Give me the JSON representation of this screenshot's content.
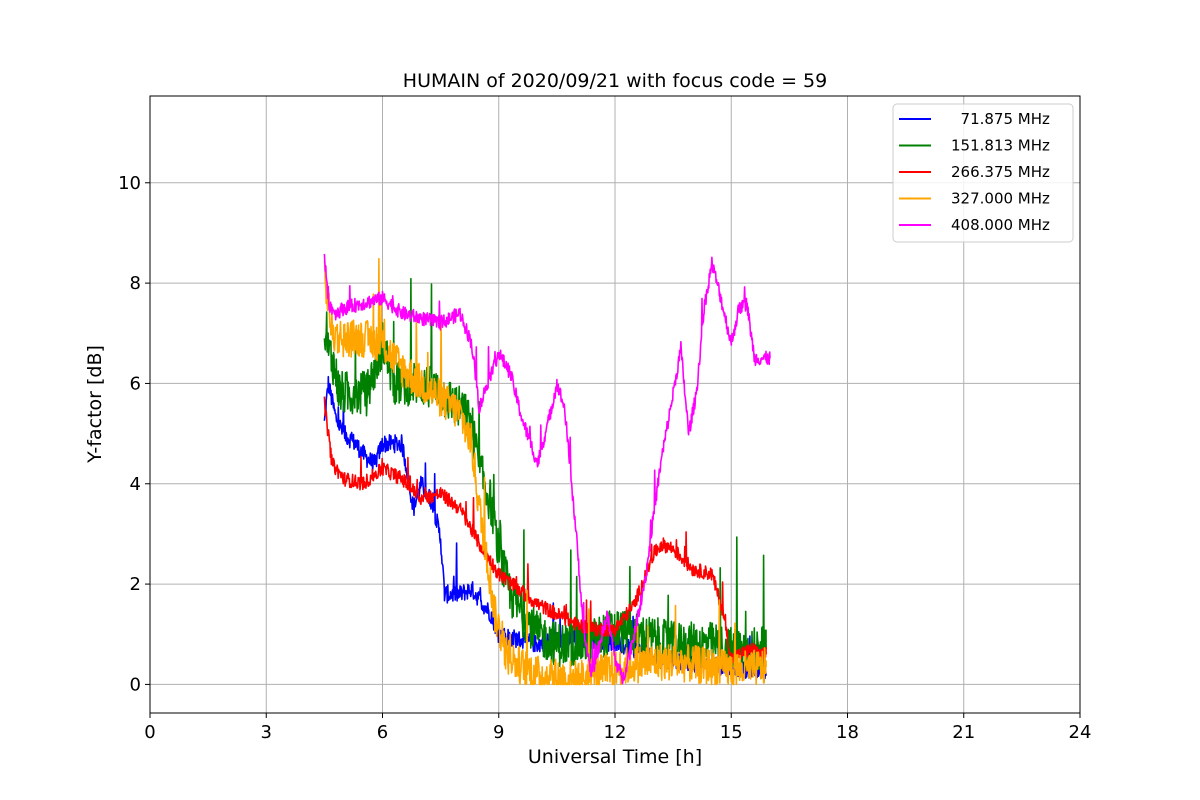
{
  "chart_data": {
    "type": "line",
    "title": "HUMAIN of 2020/09/21 with focus code = 59",
    "xlabel": "Universal Time [h]",
    "ylabel": "Y-factor [dB]",
    "xlim": [
      0,
      24
    ],
    "ylim": [
      -0.57,
      11.73
    ],
    "xticks": [
      0,
      3,
      6,
      9,
      12,
      15,
      18,
      21,
      24
    ],
    "yticks": [
      0,
      2,
      4,
      6,
      8,
      10
    ],
    "grid": true,
    "legend_position": "top-right",
    "series": [
      {
        "name": "  71.875 MHz",
        "color": "#0000ff",
        "noise": 0.18,
        "points": [
          [
            4.5,
            5.2
          ],
          [
            4.6,
            6.0
          ],
          [
            4.8,
            5.3
          ],
          [
            5.0,
            5.0
          ],
          [
            5.3,
            4.8
          ],
          [
            5.6,
            4.5
          ],
          [
            5.8,
            4.4
          ],
          [
            6.0,
            4.8
          ],
          [
            6.3,
            4.8
          ],
          [
            6.5,
            4.8
          ],
          [
            6.6,
            4.4
          ],
          [
            6.8,
            3.5
          ],
          [
            7.0,
            4.0
          ],
          [
            7.3,
            3.6
          ],
          [
            7.5,
            2.9
          ],
          [
            7.6,
            1.8
          ],
          [
            8.0,
            1.8
          ],
          [
            8.3,
            1.9
          ],
          [
            8.5,
            1.7
          ],
          [
            8.8,
            1.4
          ],
          [
            9.0,
            1.0
          ],
          [
            9.5,
            0.9
          ],
          [
            10.0,
            0.8
          ],
          [
            10.5,
            0.9
          ],
          [
            11.0,
            0.9
          ],
          [
            11.5,
            0.9
          ],
          [
            12.0,
            0.8
          ],
          [
            12.5,
            0.7
          ],
          [
            13.0,
            0.5
          ],
          [
            13.5,
            0.5
          ],
          [
            14.0,
            0.4
          ],
          [
            14.5,
            0.4
          ],
          [
            15.0,
            0.3
          ],
          [
            15.5,
            0.3
          ],
          [
            15.9,
            0.2
          ]
        ]
      },
      {
        "name": "151.813 MHz",
        "color": "#008000",
        "noise": 0.45,
        "points": [
          [
            4.5,
            6.8
          ],
          [
            4.7,
            6.5
          ],
          [
            4.9,
            5.8
          ],
          [
            5.3,
            5.8
          ],
          [
            5.6,
            5.8
          ],
          [
            5.8,
            6.3
          ],
          [
            6.0,
            6.8
          ],
          [
            6.3,
            6.0
          ],
          [
            6.6,
            6.0
          ],
          [
            7.0,
            6.0
          ],
          [
            7.5,
            5.8
          ],
          [
            8.0,
            5.5
          ],
          [
            8.3,
            5.2
          ],
          [
            8.5,
            4.3
          ],
          [
            8.8,
            3.6
          ],
          [
            9.0,
            2.6
          ],
          [
            9.3,
            1.8
          ],
          [
            9.6,
            1.4
          ],
          [
            10.0,
            1.0
          ],
          [
            10.5,
            0.8
          ],
          [
            11.0,
            0.8
          ],
          [
            11.5,
            0.9
          ],
          [
            12.0,
            1.1
          ],
          [
            12.5,
            1.0
          ],
          [
            13.0,
            0.9
          ],
          [
            13.5,
            0.8
          ],
          [
            14.0,
            0.8
          ],
          [
            14.5,
            0.8
          ],
          [
            15.0,
            0.7
          ],
          [
            15.5,
            0.7
          ],
          [
            15.9,
            0.7
          ]
        ]
      },
      {
        "name": "266.375 MHz",
        "color": "#ff0000",
        "noise": 0.14,
        "points": [
          [
            4.5,
            5.6
          ],
          [
            4.7,
            4.4
          ],
          [
            5.0,
            4.1
          ],
          [
            5.5,
            4.0
          ],
          [
            6.0,
            4.3
          ],
          [
            6.5,
            4.1
          ],
          [
            7.0,
            3.7
          ],
          [
            7.5,
            3.8
          ],
          [
            8.0,
            3.5
          ],
          [
            8.5,
            2.8
          ],
          [
            9.0,
            2.2
          ],
          [
            9.5,
            1.9
          ],
          [
            10.0,
            1.6
          ],
          [
            10.5,
            1.4
          ],
          [
            11.0,
            1.2
          ],
          [
            11.5,
            1.1
          ],
          [
            12.0,
            1.1
          ],
          [
            12.5,
            1.6
          ],
          [
            13.0,
            2.6
          ],
          [
            13.2,
            2.8
          ],
          [
            13.5,
            2.7
          ],
          [
            14.0,
            2.3
          ],
          [
            14.5,
            2.2
          ],
          [
            14.8,
            1.4
          ],
          [
            15.0,
            0.5
          ],
          [
            15.5,
            0.7
          ],
          [
            15.9,
            0.6
          ]
        ]
      },
      {
        "name": "327.000 MHz",
        "color": "#ffa500",
        "noise": 0.38,
        "points": [
          [
            4.5,
            8.2
          ],
          [
            4.7,
            7.0
          ],
          [
            5.0,
            6.9
          ],
          [
            5.5,
            6.9
          ],
          [
            6.0,
            6.8
          ],
          [
            6.5,
            6.3
          ],
          [
            7.0,
            6.0
          ],
          [
            7.5,
            5.7
          ],
          [
            8.0,
            5.4
          ],
          [
            8.3,
            4.8
          ],
          [
            8.5,
            3.5
          ],
          [
            8.7,
            2.5
          ],
          [
            8.9,
            1.4
          ],
          [
            9.2,
            0.6
          ],
          [
            9.5,
            0.4
          ],
          [
            10.0,
            0.2
          ],
          [
            10.5,
            0.15
          ],
          [
            11.0,
            0.1
          ],
          [
            11.5,
            0.2
          ],
          [
            12.0,
            0.3
          ],
          [
            12.5,
            0.4
          ],
          [
            13.0,
            0.45
          ],
          [
            13.5,
            0.45
          ],
          [
            14.0,
            0.4
          ],
          [
            14.5,
            0.35
          ],
          [
            15.0,
            0.3
          ],
          [
            15.5,
            0.3
          ],
          [
            15.9,
            0.35
          ]
        ]
      },
      {
        "name": "408.000 MHz",
        "color": "#ff00ff",
        "noise": 0.14,
        "points": [
          [
            4.5,
            8.6
          ],
          [
            4.6,
            7.6
          ],
          [
            4.8,
            7.4
          ],
          [
            5.0,
            7.5
          ],
          [
            5.5,
            7.6
          ],
          [
            6.0,
            7.7
          ],
          [
            6.5,
            7.4
          ],
          [
            7.0,
            7.3
          ],
          [
            7.5,
            7.2
          ],
          [
            8.0,
            7.4
          ],
          [
            8.3,
            6.8
          ],
          [
            8.5,
            5.5
          ],
          [
            8.7,
            6.0
          ],
          [
            9.0,
            6.6
          ],
          [
            9.3,
            6.2
          ],
          [
            9.6,
            5.3
          ],
          [
            10.0,
            4.4
          ],
          [
            10.3,
            5.3
          ],
          [
            10.5,
            6.0
          ],
          [
            10.7,
            5.5
          ],
          [
            11.0,
            3.0
          ],
          [
            11.2,
            1.0
          ],
          [
            11.4,
            0.2
          ],
          [
            11.6,
            0.8
          ],
          [
            11.8,
            1.4
          ],
          [
            12.0,
            0.5
          ],
          [
            12.2,
            0.1
          ],
          [
            12.5,
            1.0
          ],
          [
            12.8,
            2.2
          ],
          [
            13.0,
            3.4
          ],
          [
            13.2,
            4.5
          ],
          [
            13.5,
            5.8
          ],
          [
            13.7,
            6.7
          ],
          [
            13.9,
            5.0
          ],
          [
            14.1,
            5.8
          ],
          [
            14.3,
            7.5
          ],
          [
            14.5,
            8.4
          ],
          [
            14.7,
            7.8
          ],
          [
            15.0,
            6.8
          ],
          [
            15.2,
            7.5
          ],
          [
            15.4,
            7.6
          ],
          [
            15.6,
            6.5
          ],
          [
            15.8,
            6.5
          ],
          [
            16.0,
            6.5
          ]
        ]
      }
    ]
  }
}
